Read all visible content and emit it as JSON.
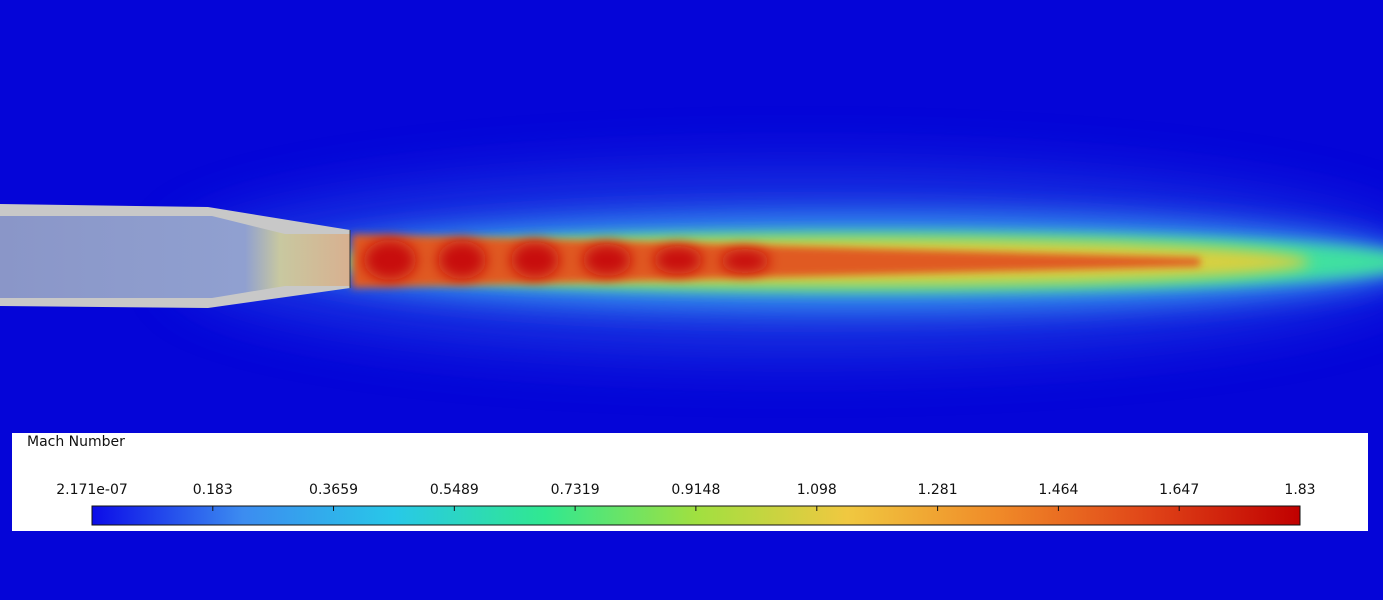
{
  "legend": {
    "title": "Mach Number",
    "lim": [
      2.171e-07,
      1.83
    ],
    "ticks": [
      {
        "value": 2.171e-07,
        "label": "2.171e-07"
      },
      0.183,
      0.3659,
      0.5489,
      0.7319,
      0.9148,
      1.098,
      1.281,
      1.464,
      1.647,
      1.83
    ],
    "colormap": [
      "#0c0ce8",
      "#3c8cf0",
      "#28c8e8",
      "#30e890",
      "#a0e040",
      "#f0c840",
      "#f08a28",
      "#e04418",
      "#c00000"
    ]
  }
}
